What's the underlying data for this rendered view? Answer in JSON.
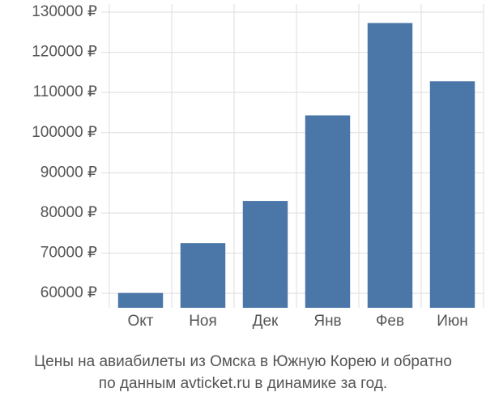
{
  "chart_data": {
    "type": "bar",
    "caption": [
      "Цены на авиабилеты из Омска в Южную Корею и обратно",
      "по данным avticket.ru в динамике за год."
    ],
    "categories": [
      "Окт",
      "Ноя",
      "Дек",
      "Янв",
      "Фев",
      "Июн"
    ],
    "values": [
      60100,
      72500,
      83000,
      104300,
      127300,
      112800
    ],
    "color": "#4a76a8",
    "ylim": [
      56400,
      130000
    ],
    "yticks": [
      {
        "value": 60000,
        "label": "60000 ₽"
      },
      {
        "value": 70000,
        "label": "70000 ₽"
      },
      {
        "value": 80000,
        "label": "80000 ₽"
      },
      {
        "value": 90000,
        "label": "90000 ₽"
      },
      {
        "value": 100000,
        "label": "100000 ₽"
      },
      {
        "value": 110000,
        "label": "110000 ₽"
      },
      {
        "value": 120000,
        "label": "120000 ₽"
      },
      {
        "value": 130000,
        "label": "130000 ₽"
      }
    ],
    "grid": true
  }
}
